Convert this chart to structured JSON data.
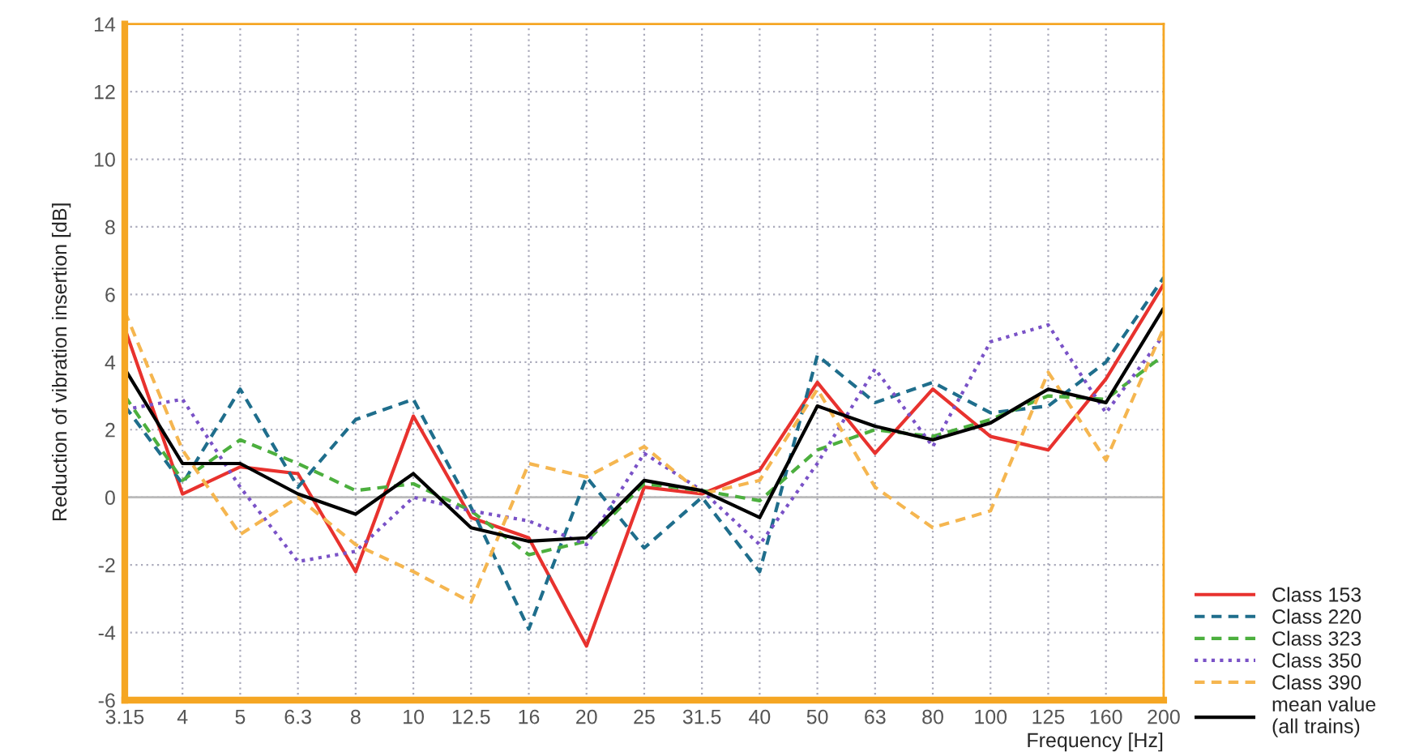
{
  "chart_data": {
    "type": "line",
    "xlabel": "Frequency [Hz]",
    "ylabel": "Reduction of vibration insertion [dB]",
    "categories": [
      "3.15",
      "4",
      "5",
      "6.3",
      "8",
      "10",
      "12.5",
      "16",
      "20",
      "25",
      "31.5",
      "40",
      "50",
      "63",
      "80",
      "100",
      "125",
      "160",
      "200"
    ],
    "series": [
      {
        "name": "Class 153",
        "color": "#e8322e",
        "line_style": "solid",
        "values": [
          5.0,
          0.1,
          0.9,
          0.7,
          -2.2,
          2.4,
          -0.6,
          -1.2,
          -4.4,
          0.3,
          0.1,
          0.8,
          3.4,
          1.3,
          3.2,
          1.8,
          1.4,
          3.5,
          6.3
        ]
      },
      {
        "name": "Class 220",
        "color": "#1f6e8c",
        "line_style": "dashed",
        "values": [
          2.7,
          0.4,
          3.2,
          0.3,
          2.3,
          2.9,
          -0.3,
          -3.9,
          0.6,
          -1.5,
          0.0,
          -2.2,
          4.2,
          2.8,
          3.4,
          2.5,
          2.7,
          4.0,
          6.5
        ]
      },
      {
        "name": "Class 323",
        "color": "#4caf3e",
        "line_style": "dashed",
        "values": [
          3.0,
          0.5,
          1.7,
          1.0,
          0.2,
          0.4,
          -0.4,
          -1.7,
          -1.3,
          0.4,
          0.2,
          -0.1,
          1.4,
          2.0,
          1.8,
          2.3,
          3.0,
          2.9,
          4.2
        ]
      },
      {
        "name": "Class 350",
        "color": "#7a52c7",
        "line_style": "dotted",
        "values": [
          2.6,
          2.9,
          0.3,
          -1.9,
          -1.6,
          0.0,
          -0.4,
          -0.7,
          -1.4,
          1.3,
          0.2,
          -1.4,
          1.0,
          3.8,
          1.5,
          4.6,
          5.1,
          2.5,
          4.8
        ]
      },
      {
        "name": "Class 390",
        "color": "#f5b650",
        "line_style": "dashed",
        "values": [
          5.5,
          1.4,
          -1.1,
          0.0,
          -1.4,
          -2.2,
          -3.1,
          1.0,
          0.6,
          1.5,
          0.1,
          0.5,
          3.2,
          0.3,
          -0.9,
          -0.4,
          3.7,
          1.1,
          5.0
        ]
      },
      {
        "name": "mean value\n(all trains)",
        "color": "#000000",
        "line_style": "solid",
        "values": [
          3.8,
          1.0,
          1.0,
          0.1,
          -0.5,
          0.7,
          -0.9,
          -1.3,
          -1.2,
          0.5,
          0.2,
          -0.6,
          2.7,
          2.1,
          1.7,
          2.2,
          3.2,
          2.8,
          5.6
        ]
      }
    ],
    "ylim": [
      -6,
      14
    ],
    "yticks": [
      {
        "value": -6,
        "label": "-6"
      },
      {
        "value": -4,
        "label": "-4"
      },
      {
        "value": -2,
        "label": "-2"
      },
      0,
      2,
      4,
      6,
      8,
      10,
      12,
      14
    ],
    "ref_lines": [
      {
        "axis": "y",
        "value": 0,
        "color": "#bbbbbb",
        "line_style": "solid"
      }
    ],
    "grid": true,
    "legend": "bottom right",
    "marker": "none"
  }
}
